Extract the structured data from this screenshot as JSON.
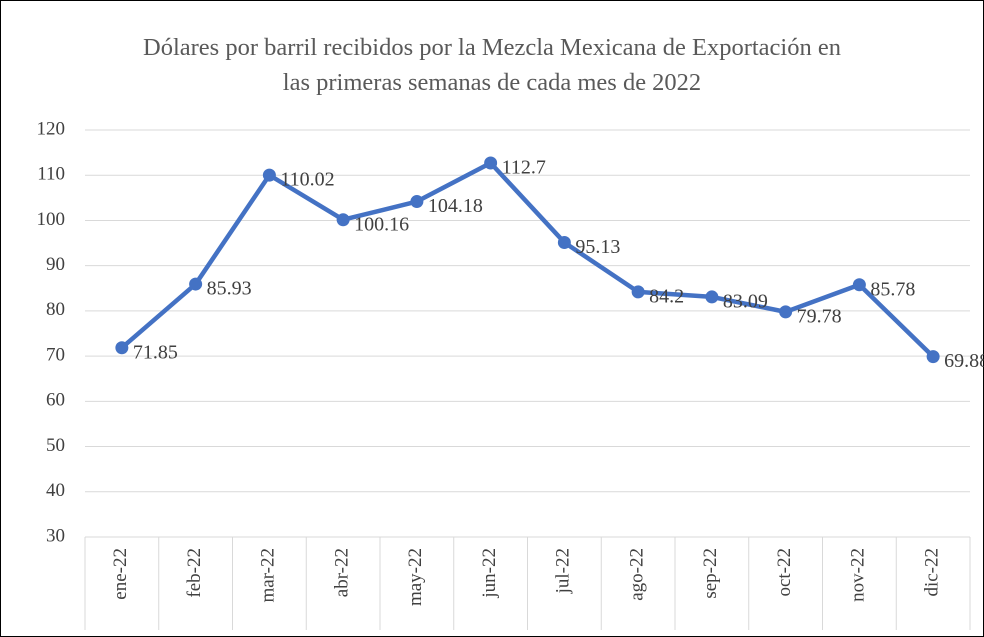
{
  "chart_data": {
    "type": "line",
    "title": "Dólares por barril recibidos por la Mezcla Mexicana de Exportación en las primeras semanas de cada mes de 2022",
    "categories": [
      "ene-22",
      "feb-22",
      "mar-22",
      "abr-22",
      "may-22",
      "jun-22",
      "jul-22",
      "ago-22",
      "sep-22",
      "oct-22",
      "nov-22",
      "dic-22"
    ],
    "values": [
      71.85,
      85.93,
      110.02,
      100.16,
      104.18,
      112.7,
      95.13,
      84.2,
      83.09,
      79.78,
      85.78,
      69.88
    ],
    "color": "#4472c4",
    "ylim": [
      30,
      120
    ],
    "yticks": [
      30,
      40,
      50,
      60,
      70,
      80,
      90,
      100,
      110,
      120
    ],
    "grid": true
  }
}
